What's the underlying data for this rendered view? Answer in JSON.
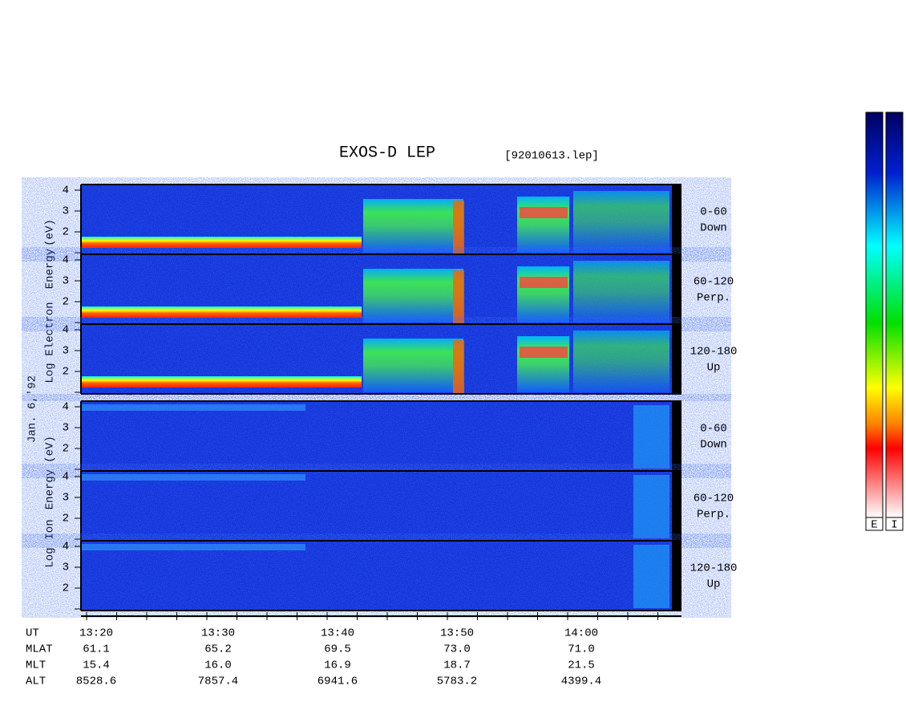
{
  "title": "EXOS-D LEP",
  "file": "[92010613.lep]",
  "date": "Jan. 6,'92",
  "electron": {
    "axis_label": [
      "Log",
      "Electron",
      "Energy",
      "(eV)"
    ],
    "panels": [
      {
        "ticks": [
          "4",
          "3",
          "2"
        ],
        "pitch": "0-60",
        "direction": "Down"
      },
      {
        "ticks": [
          "4",
          "3",
          "2"
        ],
        "pitch": "60-120",
        "direction": "Perp."
      },
      {
        "ticks": [
          "4",
          "3",
          "2"
        ],
        "pitch": "120-180",
        "direction": "Up"
      }
    ]
  },
  "ion": {
    "axis_label": [
      "Log",
      "Ion",
      "Energy",
      "(eV)"
    ],
    "panels": [
      {
        "ticks": [
          "4",
          "3",
          "2"
        ],
        "pitch": "0-60",
        "direction": "Down"
      },
      {
        "ticks": [
          "4",
          "3",
          "2"
        ],
        "pitch": "60-120",
        "direction": "Perp."
      },
      {
        "ticks": [
          "4",
          "3",
          "2"
        ],
        "pitch": "120-180",
        "direction": "Up"
      }
    ]
  },
  "time_axis": {
    "rows": [
      {
        "name": "UT",
        "values": [
          "13:20",
          "13:30",
          "13:40",
          "13:50",
          "14:00"
        ]
      },
      {
        "name": "MLAT",
        "values": [
          "61.1",
          "65.2",
          "69.5",
          "73.0",
          "71.0"
        ]
      },
      {
        "name": "MLT",
        "values": [
          "15.4",
          "16.0",
          "16.9",
          "18.7",
          "21.5"
        ]
      },
      {
        "name": "ALT",
        "values": [
          "8528.6",
          "7857.4",
          "6941.6",
          "5783.2",
          "4399.4"
        ]
      }
    ]
  },
  "colorbars": [
    "E",
    "I"
  ]
}
